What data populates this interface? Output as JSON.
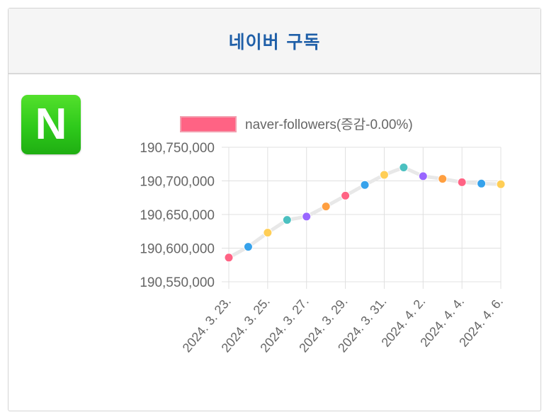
{
  "header": {
    "title": "네이버 구독"
  },
  "logo": {
    "letter": "N",
    "icon": "naver-logo-icon",
    "color": "#2ec91b"
  },
  "chart_data": {
    "type": "line",
    "legend": {
      "label": "naver-followers(증감-0.00%)",
      "position": "top",
      "swatch_color": "#ff6384"
    },
    "y_ticks": [
      "190,750,000",
      "190,700,000",
      "190,650,000",
      "190,600,000",
      "190,550,000"
    ],
    "ylim": [
      190550000,
      190750000
    ],
    "x_tick_labels": [
      "2024. 3. 23.",
      "2024. 3. 25.",
      "2024. 3. 27.",
      "2024. 3. 29.",
      "2024. 3. 31.",
      "2024. 4. 2.",
      "2024. 4. 4.",
      "2024. 4. 6."
    ],
    "grid": true,
    "series": [
      {
        "name": "naver-followers",
        "values": [
          190586000,
          190602000,
          190623000,
          190642000,
          190647000,
          190662000,
          190678000,
          190694000,
          190709000,
          190720000,
          190707000,
          190703000,
          190698000,
          190696000,
          190695000
        ],
        "point_colors": [
          "#ff6384",
          "#36a2eb",
          "#ffce56",
          "#4bc0c0",
          "#9966ff",
          "#ff9f40",
          "#ff6384",
          "#36a2eb",
          "#ffce56",
          "#4bc0c0",
          "#9966ff",
          "#ff9f40",
          "#ff6384",
          "#36a2eb",
          "#ffce56"
        ],
        "line_color": "#e8e8e8"
      }
    ]
  }
}
